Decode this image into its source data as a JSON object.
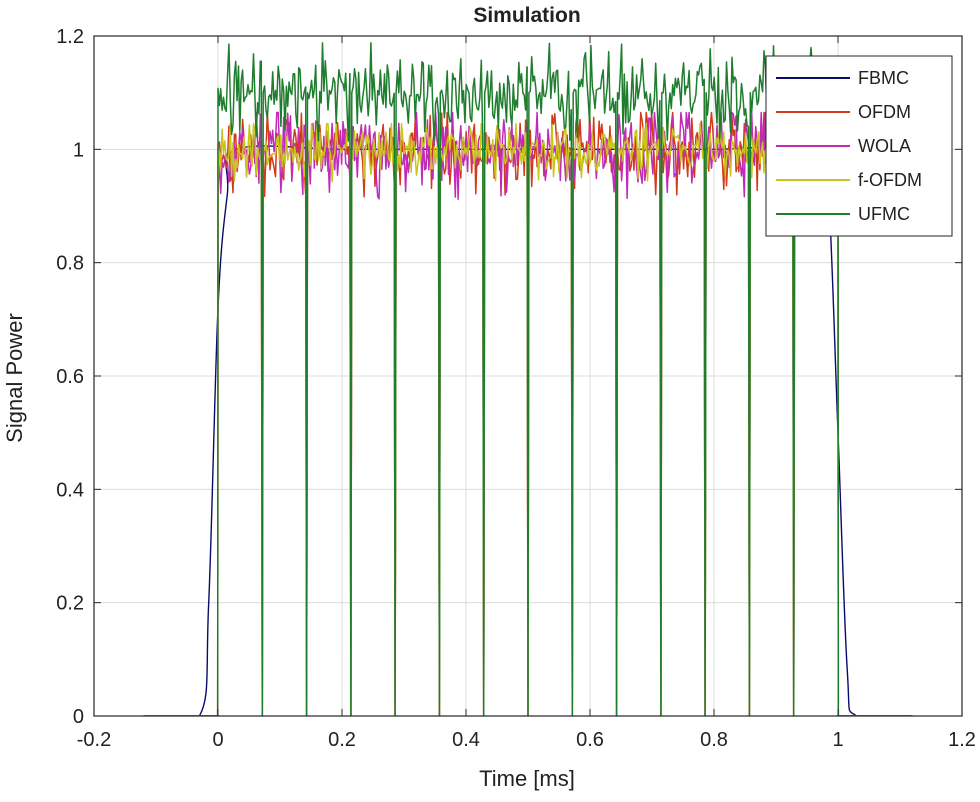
{
  "chart_data": {
    "type": "line",
    "title": "Simulation",
    "xlabel": "Time [ms]",
    "ylabel": "Signal Power",
    "xlim": [
      -0.2,
      1.2
    ],
    "ylim": [
      0,
      1.2
    ],
    "xticks": [
      -0.2,
      0,
      0.2,
      0.4,
      0.6,
      0.8,
      1,
      1.2
    ],
    "xtick_labels": [
      "-0.2",
      "0",
      "0.2",
      "0.4",
      "0.6",
      "0.8",
      "1",
      "1.2"
    ],
    "yticks": [
      0,
      0.2,
      0.4,
      0.6,
      0.8,
      1,
      1.2
    ],
    "ytick_labels": [
      "0",
      "0.2",
      "0.4",
      "0.6",
      "0.8",
      "1",
      "1.2"
    ],
    "grid": true,
    "legend_position": "top-right",
    "symbol_boundaries_ms": [
      0.0714,
      0.1429,
      0.2143,
      0.2857,
      0.3571,
      0.4286,
      0.5,
      0.5714,
      0.6429,
      0.7143,
      0.7857,
      0.8571,
      0.9286
    ],
    "series": [
      {
        "name": "FBMC",
        "color": "#0b0b6b",
        "ramp_up_ms": [
          -0.02,
          0.02
        ],
        "ramp_down_ms": [
          0.98,
          1.02
        ],
        "x": [
          -0.12,
          -0.03,
          -0.015,
          0,
          0.015,
          0.03,
          0.2,
          0.4,
          0.6,
          0.8,
          0.97,
          0.985,
          1,
          1.015,
          1.03,
          1.12
        ],
        "values": [
          0,
          0,
          0.2,
          0.72,
          0.92,
          1.0,
          1.0,
          1.0,
          1.0,
          1.0,
          1.0,
          0.92,
          0.5,
          0.08,
          0,
          0
        ]
      },
      {
        "name": "OFDM",
        "color": "#d23a1a",
        "start_ms": 0,
        "end_ms": 1,
        "mean_level": 1.0,
        "range": [
          0.9,
          1.06
        ],
        "drops_at_symbol_boundaries": true
      },
      {
        "name": "WOLA",
        "color": "#c02bb8",
        "start_ms": 0,
        "end_ms": 1,
        "mean_level": 1.0,
        "range": [
          0.89,
          1.06
        ],
        "drops_at_symbol_boundaries": true
      },
      {
        "name": "f-OFDM",
        "color": "#c9c41e",
        "start_ms": 0,
        "end_ms": 1,
        "mean_level": 1.0,
        "range": [
          0.93,
          1.04
        ],
        "drops_at_symbol_boundaries": true
      },
      {
        "name": "UFMC",
        "color": "#1f7d2e",
        "start_ms": 0,
        "end_ms": 1,
        "mean_level": 1.1,
        "range": [
          1.02,
          1.19
        ],
        "drops_at_symbol_boundaries": true
      }
    ]
  }
}
